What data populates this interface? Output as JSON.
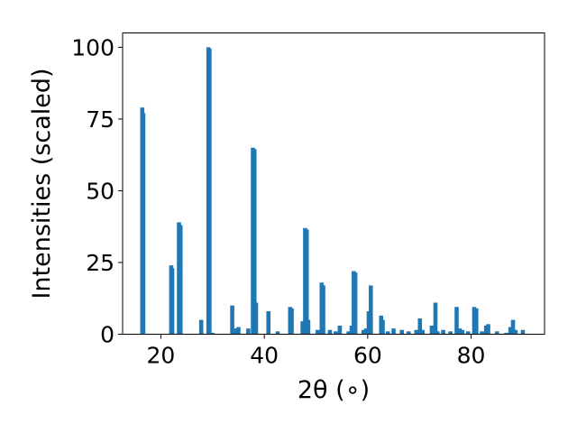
{
  "chart_data": {
    "type": "bar",
    "title": "",
    "xlabel": "2θ (∘)",
    "ylabel": "Intensities (scaled)",
    "xlim": [
      12.6,
      94.2
    ],
    "ylim": [
      0,
      105
    ],
    "xticks": [
      20,
      40,
      60,
      80
    ],
    "yticks": [
      0,
      25,
      50,
      75,
      100
    ],
    "grid": false,
    "bar_color": "#1f77b4",
    "bar_width": 0.8,
    "x": [
      16.4,
      16.6,
      22.0,
      22.2,
      23.5,
      23.8,
      27.8,
      29.2,
      29.4,
      30.0,
      33.8,
      34.6,
      35.0,
      36.9,
      37.8,
      38.1,
      38.4,
      40.8,
      42.6,
      45.0,
      45.3,
      47.4,
      47.9,
      48.2,
      48.5,
      50.3,
      51.1,
      51.4,
      52.7,
      53.8,
      54.6,
      56.3,
      56.9,
      57.3,
      57.6,
      59.2,
      59.7,
      60.2,
      60.6,
      62.6,
      62.9,
      63.9,
      65.0,
      66.6,
      67.9,
      69.4,
      70.1,
      70.6,
      72.4,
      73.1,
      73.5,
      74.6,
      76.0,
      77.2,
      77.8,
      78.3,
      79.4,
      80.6,
      81.0,
      82.1,
      82.9,
      83.3,
      85.0,
      86.8,
      87.6,
      88.1,
      88.6,
      90.0
    ],
    "values": [
      79.0,
      77.0,
      24.0,
      23.0,
      39.0,
      38.0,
      5.0,
      100.0,
      99.5,
      0.5,
      10.0,
      2.0,
      2.5,
      2.0,
      65.0,
      64.5,
      11.0,
      8.0,
      1.0,
      9.5,
      9.0,
      4.5,
      37.0,
      36.5,
      5.0,
      1.5,
      18.0,
      17.0,
      1.5,
      1.0,
      3.0,
      1.0,
      3.0,
      22.0,
      21.5,
      1.5,
      2.0,
      8.0,
      17.0,
      6.5,
      5.0,
      1.0,
      2.0,
      1.5,
      1.0,
      1.5,
      5.5,
      1.5,
      3.0,
      11.0,
      1.0,
      1.5,
      1.0,
      9.5,
      2.0,
      1.5,
      1.0,
      9.5,
      9.0,
      1.0,
      3.0,
      3.5,
      1.0,
      0.5,
      2.5,
      5.0,
      1.5,
      1.5
    ]
  }
}
